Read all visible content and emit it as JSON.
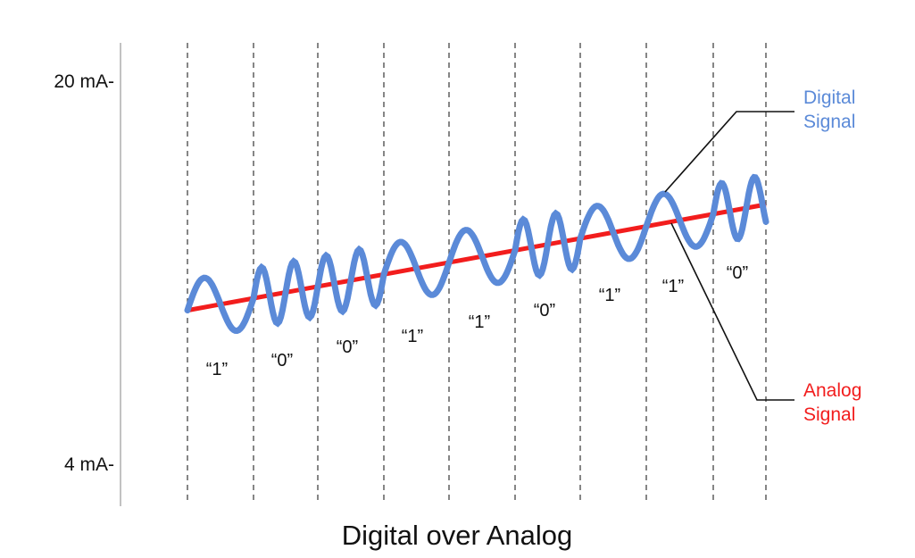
{
  "axis": {
    "labels": [
      "20 mA-",
      "4 mA-"
    ]
  },
  "bits": [
    "“1”",
    "“0”",
    "“0”",
    "“1”",
    "“1”",
    "“0”",
    "“1”",
    "“1”",
    "“0”"
  ],
  "legend": {
    "digital": [
      "Digital",
      "Signal"
    ],
    "analog": [
      "Analog",
      "Signal"
    ]
  },
  "title": "Digital over Analog"
}
